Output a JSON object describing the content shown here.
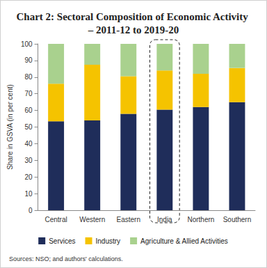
{
  "chart_data": {
    "type": "bar",
    "title": "Chart 2: Sectoral Composition of Economic Activity – 2011-12 to 2019-20",
    "y_label": "Share in GSVA (in per cent)",
    "source": "Sources: NSO; and authors' calculations.",
    "categories": [
      "Central",
      "Western",
      "Eastern",
      "India",
      "Northern",
      "Southern"
    ],
    "series": [
      {
        "name": "Services",
        "color": "#1f2d5a",
        "values": [
          53.5,
          54,
          58,
          60.5,
          62,
          65
        ]
      },
      {
        "name": "Industry",
        "color": "#f5c300",
        "values": [
          22.5,
          33.5,
          22.5,
          23.5,
          20,
          20.5
        ]
      },
      {
        "name": "Agriculture & Allied Activities",
        "color": "#a9d18e",
        "values": [
          24,
          12.5,
          19.5,
          16,
          18,
          14.5
        ]
      }
    ],
    "stacked": true,
    "ylim": [
      0,
      100
    ],
    "yticks": [
      0,
      10,
      20,
      30,
      40,
      50,
      60,
      70,
      80,
      90,
      100
    ],
    "grid": false,
    "legend": "bottom",
    "highlight": "India"
  }
}
